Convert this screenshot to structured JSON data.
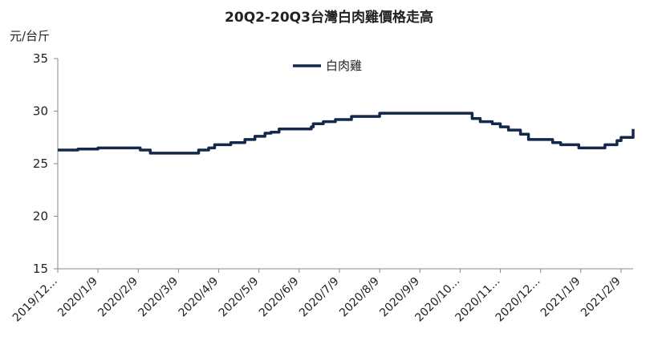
{
  "chart_data": {
    "type": "line",
    "title": "20Q2-20Q3台灣白肉雞價格走高",
    "ylabel": "元/台斤",
    "xlabel": "",
    "ylim": [
      15,
      35
    ],
    "yticks": [
      15,
      20,
      25,
      30,
      35
    ],
    "grid": false,
    "legend": "top-center",
    "categories": [
      "2019/12...",
      "2020/1/9",
      "2020/2/9",
      "2020/3/9",
      "2020/4/9",
      "2020/5/9",
      "2020/6/9",
      "2020/7/9",
      "2020/8/9",
      "2020/9/9",
      "2020/10...",
      "2020/11...",
      "2020/12...",
      "2021/1/9",
      "2021/2/9"
    ],
    "series": [
      {
        "name": "白肉雞",
        "color": "#14284b",
        "x": [
          0,
          0.5,
          1,
          1.4,
          2,
          2.05,
          2.3,
          3.0,
          3.4,
          3.5,
          3.75,
          3.9,
          4.3,
          4.65,
          4.9,
          5.15,
          5.3,
          5.5,
          6,
          6.3,
          6.35,
          6.6,
          6.9,
          7.3,
          7.5,
          8,
          8.5,
          9,
          9.5,
          10,
          10.3,
          10.5,
          10.8,
          11.0,
          11.2,
          11.5,
          11.7,
          12.0,
          12.3,
          12.5,
          12.95,
          13.3,
          13.6,
          13.9,
          14.0,
          14.3
        ],
        "values": [
          26.3,
          26.4,
          26.5,
          26.5,
          26.5,
          26.3,
          26.0,
          26.0,
          26.0,
          26.3,
          26.5,
          26.8,
          27.0,
          27.3,
          27.6,
          27.9,
          28.0,
          28.3,
          28.3,
          28.5,
          28.8,
          29.0,
          29.2,
          29.5,
          29.5,
          29.8,
          29.8,
          29.8,
          29.8,
          29.8,
          29.3,
          29.0,
          28.8,
          28.5,
          28.2,
          27.8,
          27.3,
          27.3,
          27.0,
          26.8,
          26.5,
          26.5,
          26.8,
          27.2,
          27.5,
          28.3
        ]
      }
    ],
    "x_end": 14.3
  }
}
